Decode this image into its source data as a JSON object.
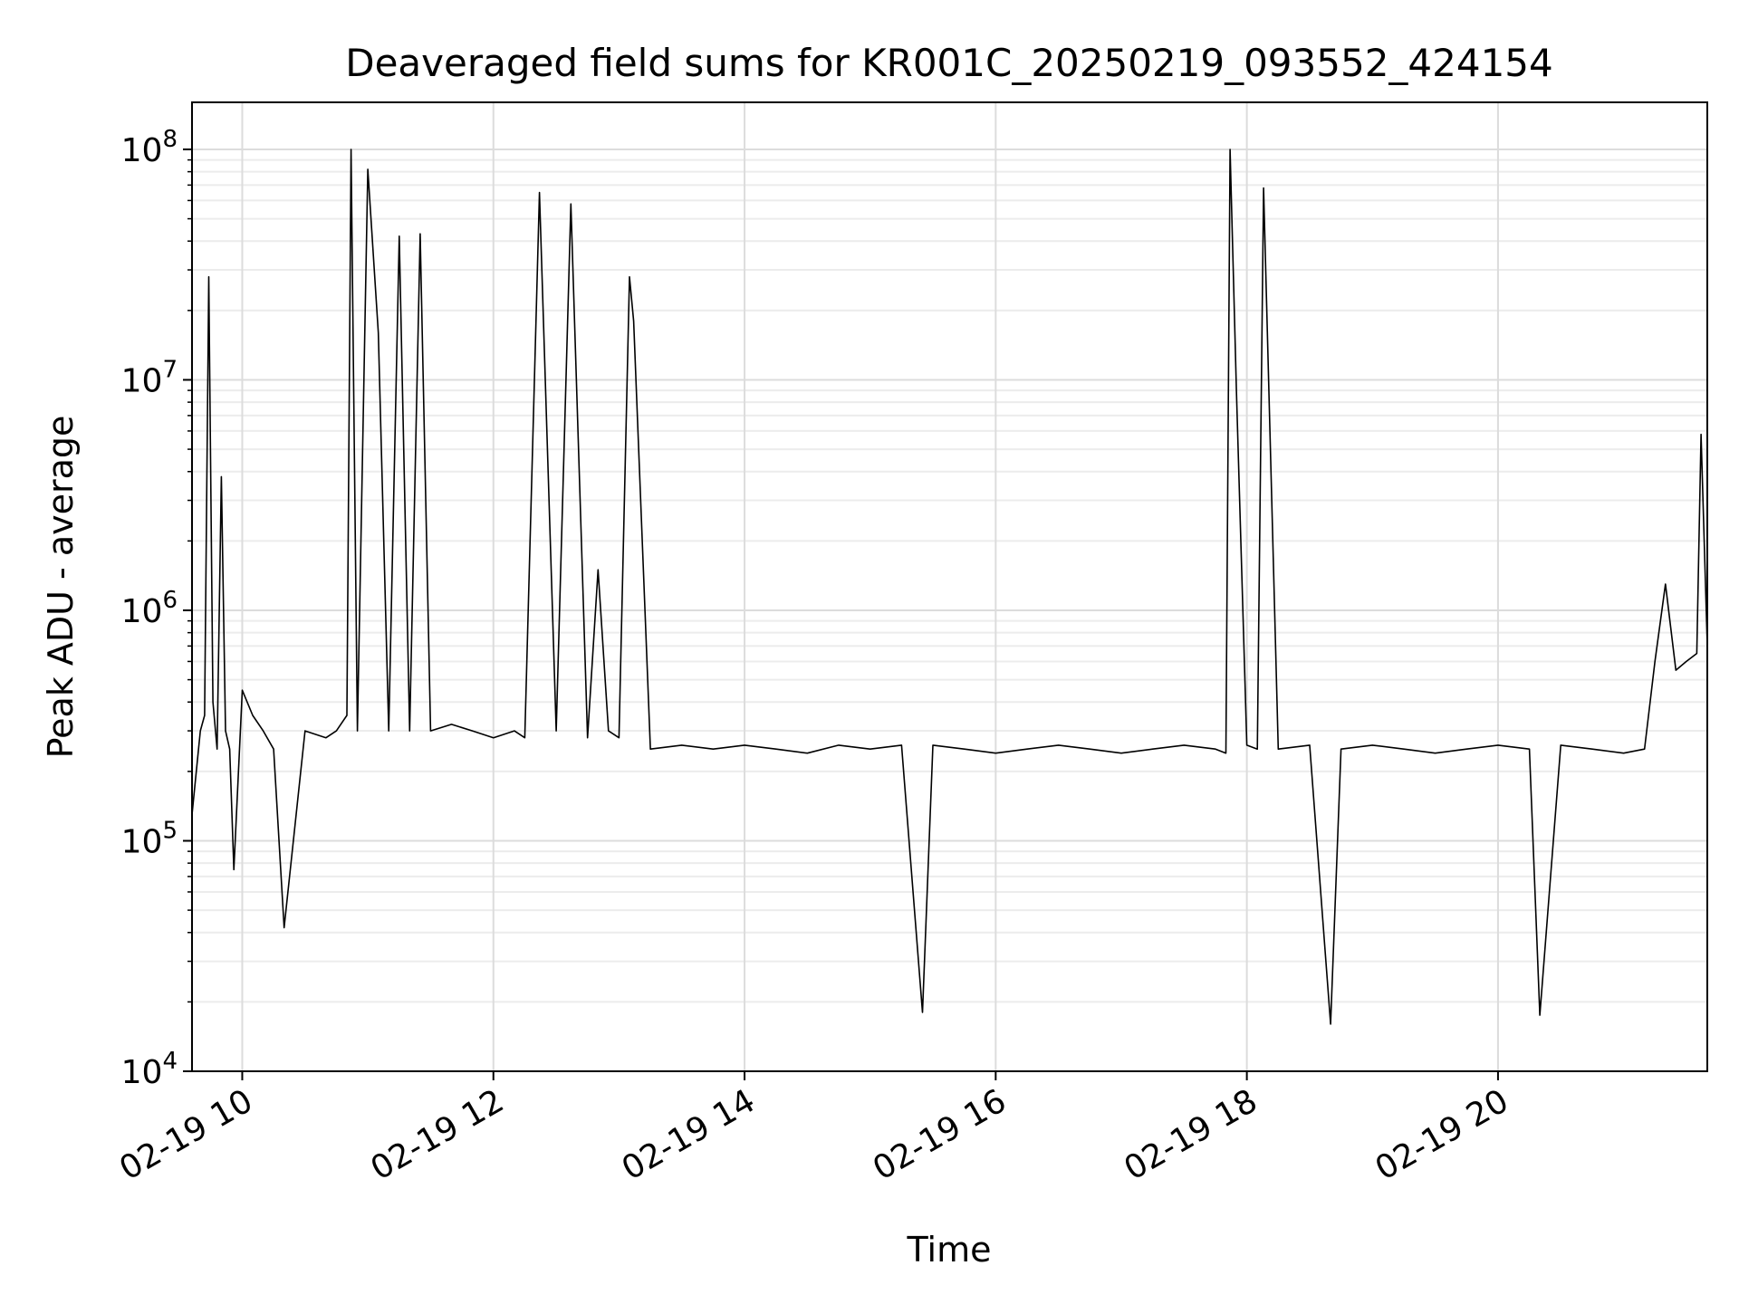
{
  "chart_data": {
    "type": "line",
    "title": "Deaveraged field sums for KR001C_20250219_093552_424154",
    "xlabel": "Time",
    "ylabel": "Peak ADU - average",
    "yscale": "log",
    "xlim": [
      "2025-02-19 09:36",
      "2025-02-19 21:40"
    ],
    "ylim": [
      10000,
      160000000
    ],
    "grid": true,
    "line_color": "#000000",
    "x_ticks": [
      {
        "t": "2025-02-19 10:00",
        "label": "02-19 10"
      },
      {
        "t": "2025-02-19 12:00",
        "label": "02-19 12"
      },
      {
        "t": "2025-02-19 14:00",
        "label": "02-19 14"
      },
      {
        "t": "2025-02-19 16:00",
        "label": "02-19 16"
      },
      {
        "t": "2025-02-19 18:00",
        "label": "02-19 18"
      },
      {
        "t": "2025-02-19 20:00",
        "label": "02-19 20"
      }
    ],
    "y_ticks": [
      {
        "value": 10000,
        "base": "10",
        "exp": "4"
      },
      {
        "value": 100000,
        "base": "10",
        "exp": "5"
      },
      {
        "value": 1000000,
        "base": "10",
        "exp": "6"
      },
      {
        "value": 10000000,
        "base": "10",
        "exp": "7"
      },
      {
        "value": 100000000,
        "base": "10",
        "exp": "8"
      }
    ],
    "series": [
      {
        "x": [
          "2025-02-19 09:36",
          "2025-02-19 09:40",
          "2025-02-19 09:42",
          "2025-02-19 09:44",
          "2025-02-19 09:46",
          "2025-02-19 09:48",
          "2025-02-19 09:50",
          "2025-02-19 09:52",
          "2025-02-19 09:54",
          "2025-02-19 09:56",
          "2025-02-19 10:00",
          "2025-02-19 10:05",
          "2025-02-19 10:10",
          "2025-02-19 10:15",
          "2025-02-19 10:20",
          "2025-02-19 10:30",
          "2025-02-19 10:40",
          "2025-02-19 10:45",
          "2025-02-19 10:50",
          "2025-02-19 10:52",
          "2025-02-19 10:55",
          "2025-02-19 11:00",
          "2025-02-19 11:05",
          "2025-02-19 11:10",
          "2025-02-19 11:15",
          "2025-02-19 11:20",
          "2025-02-19 11:25",
          "2025-02-19 11:30",
          "2025-02-19 11:40",
          "2025-02-19 11:50",
          "2025-02-19 12:00",
          "2025-02-19 12:10",
          "2025-02-19 12:15",
          "2025-02-19 12:22",
          "2025-02-19 12:30",
          "2025-02-19 12:37",
          "2025-02-19 12:45",
          "2025-02-19 12:50",
          "2025-02-19 12:55",
          "2025-02-19 13:00",
          "2025-02-19 13:05",
          "2025-02-19 13:07",
          "2025-02-19 13:15",
          "2025-02-19 13:30",
          "2025-02-19 13:45",
          "2025-02-19 14:00",
          "2025-02-19 14:15",
          "2025-02-19 14:30",
          "2025-02-19 14:45",
          "2025-02-19 15:00",
          "2025-02-19 15:15",
          "2025-02-19 15:25",
          "2025-02-19 15:30",
          "2025-02-19 15:45",
          "2025-02-19 16:00",
          "2025-02-19 16:15",
          "2025-02-19 16:30",
          "2025-02-19 16:45",
          "2025-02-19 17:00",
          "2025-02-19 17:15",
          "2025-02-19 17:30",
          "2025-02-19 17:45",
          "2025-02-19 17:50",
          "2025-02-19 17:52",
          "2025-02-19 17:55",
          "2025-02-19 18:00",
          "2025-02-19 18:05",
          "2025-02-19 18:08",
          "2025-02-19 18:15",
          "2025-02-19 18:30",
          "2025-02-19 18:40",
          "2025-02-19 18:45",
          "2025-02-19 19:00",
          "2025-02-19 19:15",
          "2025-02-19 19:30",
          "2025-02-19 19:45",
          "2025-02-19 20:00",
          "2025-02-19 20:15",
          "2025-02-19 20:20",
          "2025-02-19 20:30",
          "2025-02-19 20:45",
          "2025-02-19 21:00",
          "2025-02-19 21:10",
          "2025-02-19 21:15",
          "2025-02-19 21:20",
          "2025-02-19 21:25",
          "2025-02-19 21:30",
          "2025-02-19 21:35",
          "2025-02-19 21:37",
          "2025-02-19 21:40"
        ],
        "y": [
          130000,
          300000,
          350000,
          28000000,
          400000,
          250000,
          3800000,
          300000,
          250000,
          75000,
          450000,
          350000,
          300000,
          250000,
          42000,
          300000,
          280000,
          300000,
          350000,
          100000000,
          300000,
          82000000,
          16000000,
          300000,
          42000000,
          300000,
          43000000,
          300000,
          320000,
          300000,
          280000,
          300000,
          280000,
          65000000,
          300000,
          58000000,
          280000,
          1500000,
          300000,
          280000,
          28000000,
          18000000,
          250000,
          260000,
          250000,
          260000,
          250000,
          240000,
          260000,
          250000,
          260000,
          18000,
          260000,
          250000,
          240000,
          250000,
          260000,
          250000,
          240000,
          250000,
          260000,
          250000,
          240000,
          100000000,
          9000000,
          260000,
          250000,
          68000000,
          250000,
          260000,
          16000,
          250000,
          260000,
          250000,
          240000,
          250000,
          260000,
          250000,
          17500,
          260000,
          250000,
          240000,
          250000,
          600000,
          1300000,
          550000,
          600000,
          650000,
          5800000,
          700000
        ]
      }
    ]
  }
}
